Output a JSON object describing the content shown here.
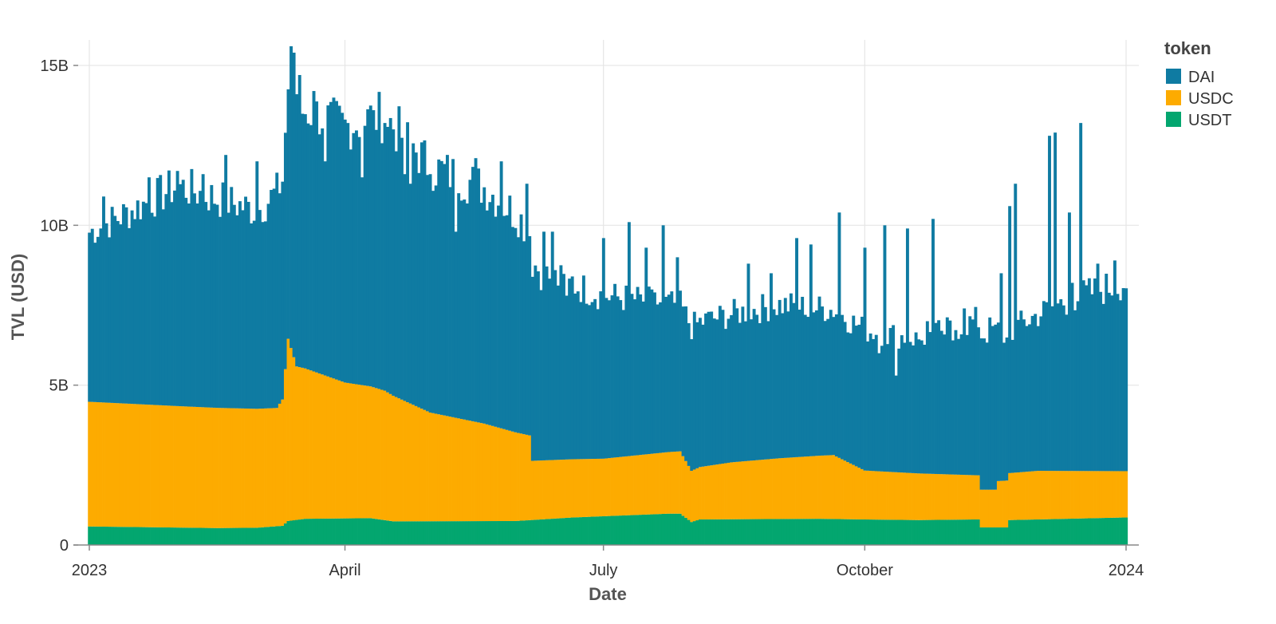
{
  "chart_data": {
    "type": "bar",
    "stacked": true,
    "xlabel": "Date",
    "ylabel": "TVL (USD)",
    "x_ticks": [
      {
        "date": "2023-01-01",
        "label": "2023"
      },
      {
        "date": "2023-04-01",
        "label": "April"
      },
      {
        "date": "2023-07-01",
        "label": "July"
      },
      {
        "date": "2023-10-01",
        "label": "October"
      },
      {
        "date": "2024-01-01",
        "label": "2024"
      }
    ],
    "y_ticks": [
      {
        "value": 0,
        "label": "0"
      },
      {
        "value": 5000000000,
        "label": "5B"
      },
      {
        "value": 10000000000,
        "label": "10B"
      },
      {
        "value": 15000000000,
        "label": "15B"
      }
    ],
    "ylim": [
      0,
      15000000000
    ],
    "xlim": [
      "2023-01-01",
      "2024-01-01"
    ],
    "grid": true,
    "legend": {
      "title": "token",
      "position": "top-right"
    },
    "series": [
      {
        "name": "USDT",
        "color": "#03a66f",
        "points": [
          [
            "2023-01-01",
            580000000.0
          ],
          [
            "2023-02-15",
            530000000.0
          ],
          [
            "2023-03-01",
            540000000.0
          ],
          [
            "2023-03-10",
            600000000.0
          ],
          [
            "2023-03-12",
            750000000.0
          ],
          [
            "2023-03-18",
            820000000.0
          ],
          [
            "2023-04-10",
            840000000.0
          ],
          [
            "2023-04-18",
            740000000.0
          ],
          [
            "2023-05-31",
            750000000.0
          ],
          [
            "2023-06-20",
            860000000.0
          ],
          [
            "2023-07-01",
            900000000.0
          ],
          [
            "2023-07-24",
            980000000.0
          ],
          [
            "2023-07-28",
            980000000.0
          ],
          [
            "2023-08-01",
            720000000.0
          ],
          [
            "2023-08-04",
            800000000.0
          ],
          [
            "2023-09-15",
            820000000.0
          ],
          [
            "2023-09-30",
            800000000.0
          ],
          [
            "2023-10-20",
            780000000.0
          ],
          [
            "2023-11-10",
            800000000.0
          ],
          [
            "2023-11-11",
            550000000.0
          ],
          [
            "2023-11-20",
            550000000.0
          ],
          [
            "2023-11-21",
            780000000.0
          ],
          [
            "2023-12-31",
            860000000.0
          ]
        ]
      },
      {
        "name": "USDC",
        "color": "#fdab00",
        "points": [
          [
            "2023-01-01",
            3900000000.0
          ],
          [
            "2023-02-01",
            3800000000.0
          ],
          [
            "2023-03-08",
            3700000000.0
          ],
          [
            "2023-03-10",
            3950000000.0
          ],
          [
            "2023-03-12",
            5700000000.0
          ],
          [
            "2023-03-15",
            4800000000.0
          ],
          [
            "2023-04-01",
            4250000000.0
          ],
          [
            "2023-04-15",
            4050000000.0
          ],
          [
            "2023-05-01",
            3400000000.0
          ],
          [
            "2023-05-20",
            3050000000.0
          ],
          [
            "2023-06-05",
            2650000000.0
          ],
          [
            "2023-06-06",
            1850000000.0
          ],
          [
            "2023-07-01",
            1800000000.0
          ],
          [
            "2023-07-28",
            1950000000.0
          ],
          [
            "2023-08-01",
            1600000000.0
          ],
          [
            "2023-08-15",
            1780000000.0
          ],
          [
            "2023-09-01",
            1900000000.0
          ],
          [
            "2023-09-20",
            2000000000.0
          ],
          [
            "2023-10-01",
            1530000000.0
          ],
          [
            "2023-11-10",
            1380000000.0
          ],
          [
            "2023-11-11",
            1180000000.0
          ],
          [
            "2023-11-16",
            1180000000.0
          ],
          [
            "2023-11-17",
            1450000000.0
          ],
          [
            "2023-12-01",
            1520000000.0
          ],
          [
            "2023-12-31",
            1450000000.0
          ]
        ]
      },
      {
        "name": "DAI",
        "color": "#0f7ba2",
        "points": [
          [
            "2023-01-01",
            5300000000.0
          ],
          [
            "2023-01-15",
            6000000000.0
          ],
          [
            "2023-02-01",
            6900000000.0
          ],
          [
            "2023-03-01",
            6200000000.0
          ],
          [
            "2023-03-10",
            6900000000.0
          ],
          [
            "2023-03-12",
            7900000000.0
          ],
          [
            "2023-03-20",
            8100000000.0
          ],
          [
            "2023-04-01",
            8000000000.0
          ],
          [
            "2023-04-15",
            8600000000.0
          ],
          [
            "2023-05-01",
            7700000000.0
          ],
          [
            "2023-05-20",
            7400000000.0
          ],
          [
            "2023-06-01",
            6800000000.0
          ],
          [
            "2023-06-10",
            5800000000.0
          ],
          [
            "2023-07-01",
            5100000000.0
          ],
          [
            "2023-08-01",
            4500000000.0
          ],
          [
            "2023-09-01",
            4800000000.0
          ],
          [
            "2023-10-01",
            4400000000.0
          ],
          [
            "2023-10-20",
            4200000000.0
          ],
          [
            "2023-11-15",
            5000000000.0
          ],
          [
            "2023-11-20",
            4400000000.0
          ],
          [
            "2023-12-10",
            5300000000.0
          ],
          [
            "2023-12-31",
            5900000000.0
          ]
        ]
      }
    ],
    "spikes": [
      [
        "2023-01-06",
        10900000000.0
      ],
      [
        "2023-01-22",
        11500000000.0
      ],
      [
        "2023-02-01",
        11700000000.0
      ],
      [
        "2023-02-10",
        11600000000.0
      ],
      [
        "2023-02-18",
        12200000000.0
      ],
      [
        "2023-03-01",
        12000000000.0
      ],
      [
        "2023-03-13",
        15600000000.0
      ],
      [
        "2023-03-14",
        15400000000.0
      ],
      [
        "2023-03-16",
        14700000000.0
      ],
      [
        "2023-03-21",
        14200000000.0
      ],
      [
        "2023-04-11",
        13600000000.0
      ],
      [
        "2023-04-15",
        13200000000.0
      ],
      [
        "2023-04-24",
        11300000000.0
      ],
      [
        "2023-05-01",
        11600000000.0
      ],
      [
        "2023-05-17",
        12100000000.0
      ],
      [
        "2023-05-26",
        12000000000.0
      ],
      [
        "2023-06-04",
        11300000000.0
      ],
      [
        "2023-06-10",
        9800000000.0
      ],
      [
        "2023-06-13",
        9800000000.0
      ],
      [
        "2023-06-20",
        8400000000.0
      ],
      [
        "2023-07-01",
        9600000000.0
      ],
      [
        "2023-07-10",
        10100000000.0
      ],
      [
        "2023-07-16",
        9300000000.0
      ],
      [
        "2023-07-22",
        10000000000.0
      ],
      [
        "2023-07-27",
        9000000000.0
      ],
      [
        "2023-08-21",
        8800000000.0
      ],
      [
        "2023-08-29",
        8500000000.0
      ],
      [
        "2023-09-07",
        9600000000.0
      ],
      [
        "2023-09-12",
        9400000000.0
      ],
      [
        "2023-09-22",
        10400000000.0
      ],
      [
        "2023-10-01",
        9300000000.0
      ],
      [
        "2023-10-08",
        10000000000.0
      ],
      [
        "2023-10-16",
        9900000000.0
      ],
      [
        "2023-10-23",
        7000000000.0
      ],
      [
        "2023-10-25",
        10200000000.0
      ],
      [
        "2023-11-05",
        7400000000.0
      ],
      [
        "2023-11-18",
        8500000000.0
      ],
      [
        "2023-11-21",
        10600000000.0
      ],
      [
        "2023-11-23",
        11300000000.0
      ],
      [
        "2023-12-05",
        12800000000.0
      ],
      [
        "2023-12-07",
        12900000000.0
      ],
      [
        "2023-12-12",
        10400000000.0
      ],
      [
        "2023-12-16",
        13200000000.0
      ],
      [
        "2023-12-22",
        8800000000.0
      ],
      [
        "2023-12-28",
        8900000000.0
      ]
    ],
    "dips": [
      [
        "2023-03-25",
        12000000000.0
      ],
      [
        "2023-04-07",
        11500000000.0
      ],
      [
        "2023-04-22",
        11600000000.0
      ],
      [
        "2023-05-10",
        9800000000.0
      ],
      [
        "2023-06-18",
        7800000000.0
      ],
      [
        "2023-07-19",
        7900000000.0
      ],
      [
        "2023-08-08",
        7300000000.0
      ],
      [
        "2023-09-10",
        7200000000.0
      ],
      [
        "2023-10-06",
        6000000000.0
      ],
      [
        "2023-10-12",
        5300000000.0
      ],
      [
        "2023-10-21",
        6400000000.0
      ],
      [
        "2023-10-28",
        6700000000.0
      ],
      [
        "2023-11-01",
        6400000000.0
      ],
      [
        "2023-12-13",
        8200000000.0
      ]
    ]
  }
}
